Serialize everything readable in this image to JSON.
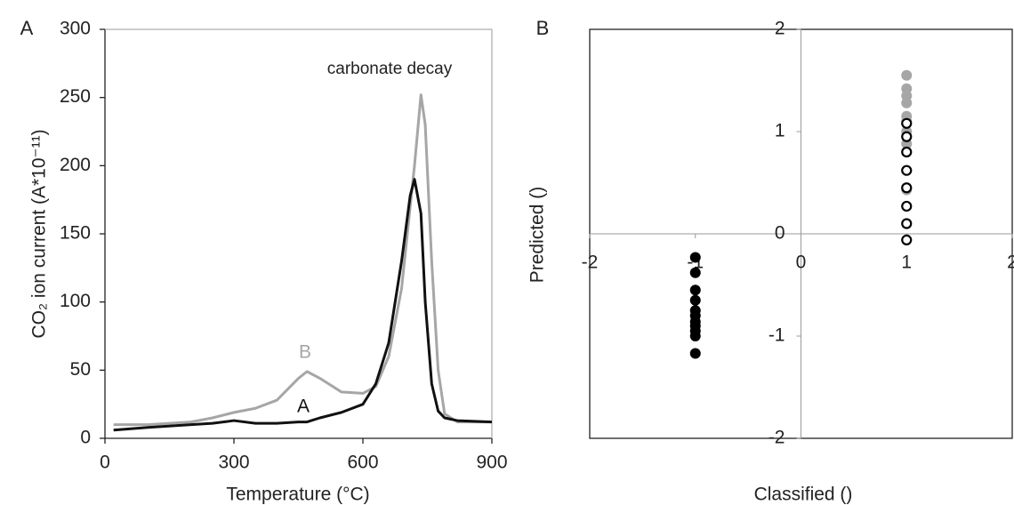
{
  "chart_data": [
    {
      "type": "line",
      "panel_label": "A",
      "annotation": "carbonate decay",
      "x_label": "Temperature (°C)",
      "y_label": "CO₂ ion current (A*10⁻¹¹)",
      "x": [
        20,
        100,
        200,
        250,
        300,
        350,
        400,
        450,
        470,
        500,
        550,
        600,
        630,
        660,
        690,
        710,
        720,
        735,
        745,
        760,
        775,
        790,
        820,
        900
      ],
      "series": [
        {
          "name": "B",
          "color": "#a6a6a6",
          "values": [
            10,
            10,
            12,
            15,
            19,
            22,
            28,
            44,
            49,
            44,
            34,
            33,
            38,
            60,
            110,
            170,
            200,
            252,
            230,
            130,
            50,
            18,
            12,
            12
          ]
        },
        {
          "name": "A",
          "color": "#111111",
          "values": [
            6,
            8,
            10,
            11,
            13,
            11,
            11,
            12,
            12,
            15,
            19,
            25,
            40,
            70,
            130,
            178,
            190,
            165,
            100,
            40,
            20,
            15,
            13,
            12
          ]
        }
      ],
      "xlim": [
        0,
        900
      ],
      "xticks": [
        0,
        300,
        600,
        900
      ],
      "ylim": [
        0,
        300
      ],
      "yticks": [
        0,
        50,
        100,
        150,
        200,
        250,
        300
      ]
    },
    {
      "type": "scatter",
      "panel_label": "B",
      "x_label": "Classified ()",
      "y_label": "Predicted ()",
      "series": [
        {
          "color": "#000000",
          "filled": true,
          "x": [
            -1,
            -1,
            -1,
            -1,
            -1,
            -1,
            -1,
            -1,
            -1,
            -1,
            -1
          ],
          "values": [
            -0.23,
            -0.38,
            -0.55,
            -0.65,
            -0.75,
            -0.8,
            -0.86,
            -0.9,
            -0.95,
            -1.0,
            -1.17
          ]
        },
        {
          "color": "#a6a6a6",
          "filled": true,
          "x": [
            1,
            1,
            1,
            1,
            1,
            1,
            1,
            1,
            1,
            1
          ],
          "values": [
            1.55,
            1.42,
            1.35,
            1.28,
            1.15,
            1.1,
            1.0,
            0.88,
            0.8,
            0.43
          ]
        },
        {
          "color": "#000000",
          "filled": false,
          "x": [
            1,
            1,
            1,
            1,
            1,
            1,
            1,
            1
          ],
          "values": [
            1.08,
            0.95,
            0.8,
            0.62,
            0.45,
            0.27,
            0.1,
            -0.06
          ]
        }
      ],
      "xlim": [
        -2,
        2
      ],
      "xticks": [
        -2,
        -1,
        0,
        1,
        2
      ],
      "ylim": [
        -2,
        2
      ],
      "yticks": [
        -2,
        -1,
        0,
        1,
        2
      ]
    }
  ]
}
